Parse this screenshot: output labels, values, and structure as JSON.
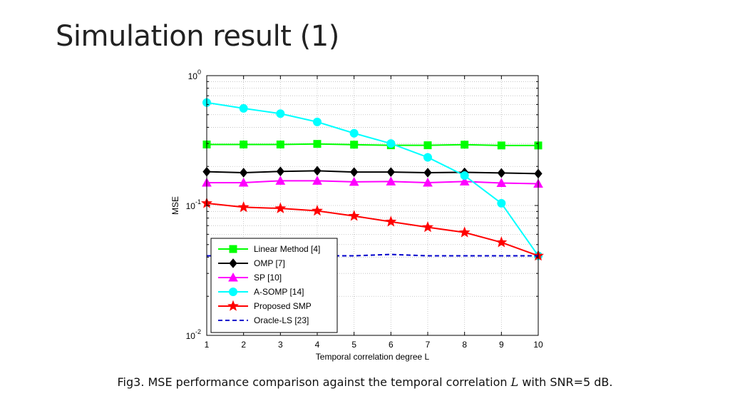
{
  "slide": {
    "title": "Simulation result (1)",
    "caption_before": "Fig3. MSE performance comparison against the temporal correlation ",
    "caption_var": "L",
    "caption_after": " with SNR=5 dB."
  },
  "chart_data": {
    "type": "line",
    "xlabel": "Temporal correlation degree L",
    "ylabel": "MSE",
    "y_scale": "log",
    "xlim": [
      1,
      10
    ],
    "ylim": [
      0.01,
      1
    ],
    "grid": true,
    "legend_position": "bottom-left",
    "x": [
      1,
      2,
      3,
      4,
      5,
      6,
      7,
      8,
      9,
      10
    ],
    "x_tick_labels": [
      "1",
      "2",
      "3",
      "4",
      "5",
      "6",
      "7",
      "8",
      "9",
      "10"
    ],
    "y_ticks": [
      {
        "value": 1,
        "base": "10",
        "exp": "0"
      },
      {
        "value": 0.1,
        "base": "10",
        "exp": "-1"
      },
      {
        "value": 0.01,
        "base": "10",
        "exp": "-2"
      }
    ],
    "series": [
      {
        "name": "Linear Method [4]",
        "color": "#00ff00",
        "marker": "square",
        "dash": "solid",
        "values": [
          0.295,
          0.295,
          0.295,
          0.298,
          0.294,
          0.291,
          0.291,
          0.294,
          0.29,
          0.29
        ]
      },
      {
        "name": "OMP [7]",
        "color": "#000000",
        "marker": "diamond",
        "dash": "solid",
        "values": [
          0.182,
          0.179,
          0.183,
          0.185,
          0.181,
          0.181,
          0.179,
          0.18,
          0.178,
          0.176
        ]
      },
      {
        "name": "SP [10]",
        "color": "#ff00ff",
        "marker": "triangle",
        "dash": "solid",
        "values": [
          0.15,
          0.15,
          0.155,
          0.155,
          0.152,
          0.153,
          0.15,
          0.153,
          0.149,
          0.147
        ]
      },
      {
        "name": "A-SOMP [14]",
        "color": "#00ffff",
        "marker": "circle",
        "dash": "solid",
        "values": [
          0.62,
          0.56,
          0.51,
          0.44,
          0.36,
          0.3,
          0.235,
          0.17,
          0.104,
          0.041
        ]
      },
      {
        "name": "Proposed SMP",
        "color": "#ff0000",
        "marker": "star",
        "dash": "solid",
        "values": [
          0.104,
          0.097,
          0.095,
          0.091,
          0.083,
          0.075,
          0.068,
          0.062,
          0.052,
          0.041
        ]
      },
      {
        "name": "Oracle-LS [23]",
        "color": "#0000cc",
        "marker": "none",
        "dash": "dashed",
        "values": [
          0.041,
          0.041,
          0.041,
          0.041,
          0.041,
          0.042,
          0.041,
          0.041,
          0.041,
          0.041
        ]
      }
    ]
  }
}
